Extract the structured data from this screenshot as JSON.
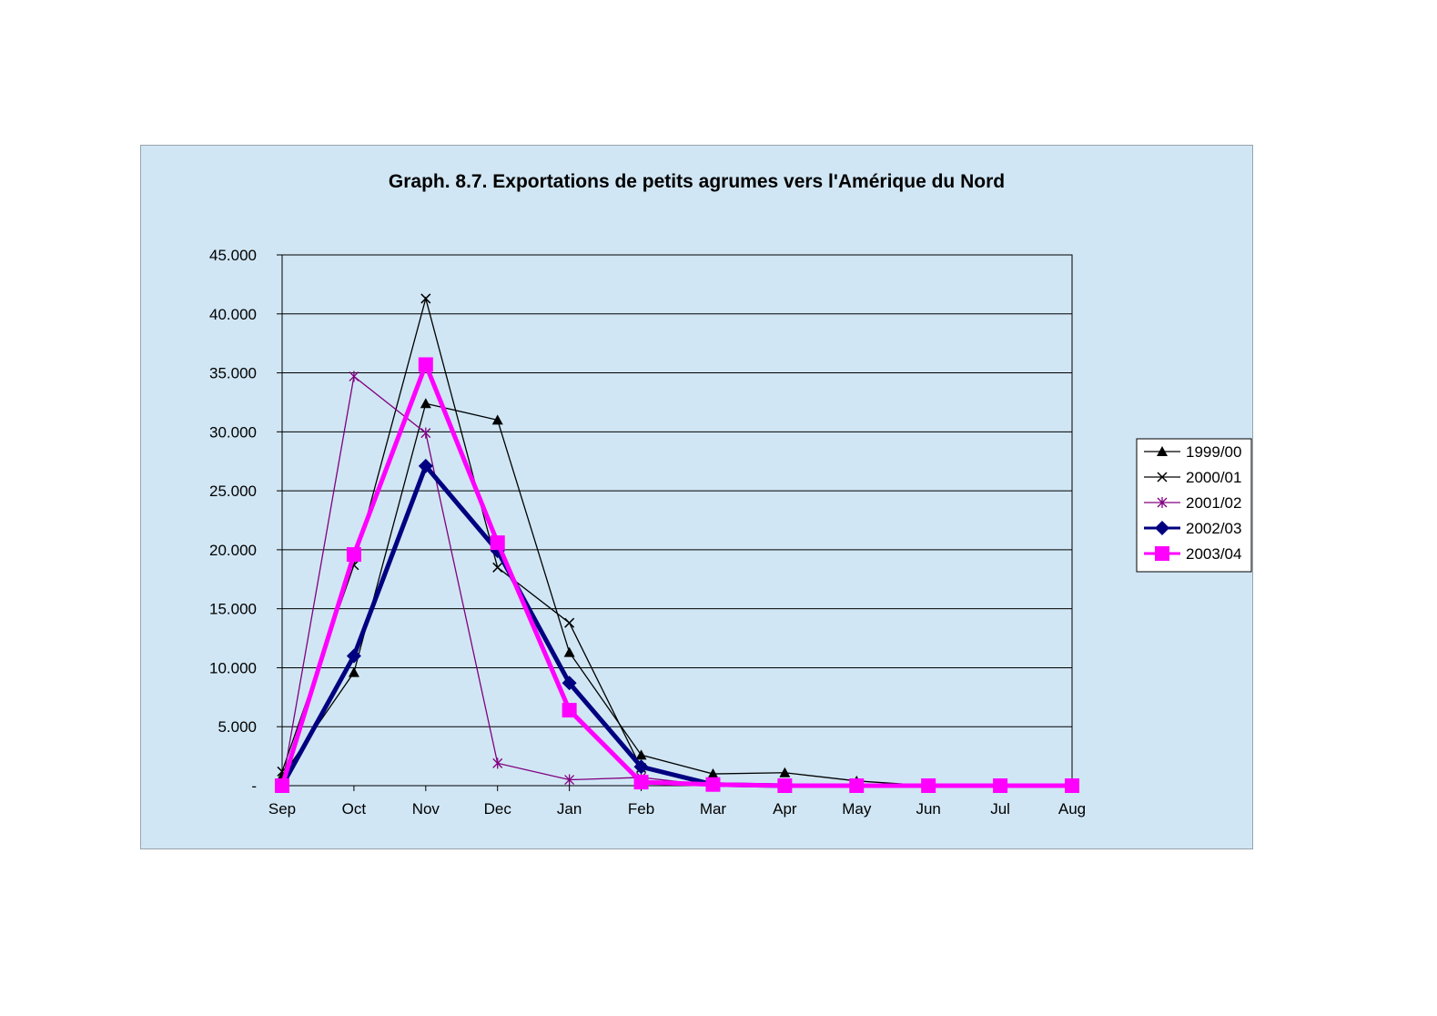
{
  "chart_data": {
    "type": "line",
    "title": "Graph. 8.7. Exportations de petits agrumes vers l'Amérique du Nord",
    "xlabel": "",
    "ylabel": "",
    "categories": [
      "Sep",
      "Oct",
      "Nov",
      "Dec",
      "Jan",
      "Feb",
      "Mar",
      "Apr",
      "May",
      "Jun",
      "Jul",
      "Aug"
    ],
    "ylim": [
      0,
      45000
    ],
    "yticks": [
      {
        "value": 0,
        "label": "-"
      },
      {
        "value": 5000,
        "label": "5.000"
      },
      {
        "value": 10000,
        "label": "10.000"
      },
      {
        "value": 15000,
        "label": "15.000"
      },
      {
        "value": 20000,
        "label": "20.000"
      },
      {
        "value": 25000,
        "label": "25.000"
      },
      {
        "value": 30000,
        "label": "30.000"
      },
      {
        "value": 35000,
        "label": "35.000"
      },
      {
        "value": 40000,
        "label": "40.000"
      },
      {
        "value": 45000,
        "label": "45.000"
      }
    ],
    "grid": true,
    "legend_position": "right",
    "series": [
      {
        "name": "1999/00",
        "color": "#000000",
        "marker": "triangle",
        "width": "thin",
        "values": [
          800,
          9600,
          32400,
          31000,
          11300,
          2600,
          1000,
          1100,
          400,
          0,
          0,
          0
        ]
      },
      {
        "name": "2000/01",
        "color": "#000000",
        "marker": "x",
        "width": "thin",
        "values": [
          1200,
          18700,
          41300,
          18500,
          13800,
          1500,
          0,
          0,
          0,
          0,
          0,
          0
        ]
      },
      {
        "name": "2001/02",
        "color": "#800080",
        "marker": "asterisk",
        "width": "thin",
        "values": [
          0,
          34700,
          29900,
          1900,
          500,
          700,
          0,
          0,
          0,
          0,
          0,
          0
        ]
      },
      {
        "name": "2002/03",
        "color": "#000080",
        "marker": "diamond",
        "width": "thick",
        "values": [
          0,
          11000,
          27100,
          19900,
          8700,
          1600,
          100,
          0,
          0,
          0,
          0,
          0
        ]
      },
      {
        "name": "2003/04",
        "color": "#ff00ff",
        "marker": "square",
        "width": "thick",
        "values": [
          0,
          19600,
          35700,
          20600,
          6400,
          300,
          100,
          0,
          0,
          0,
          0,
          0
        ]
      }
    ]
  },
  "colors": {
    "chart_background": "#d0e6f4",
    "frame_border": "#9aa3ab",
    "gridline": "#000000"
  }
}
